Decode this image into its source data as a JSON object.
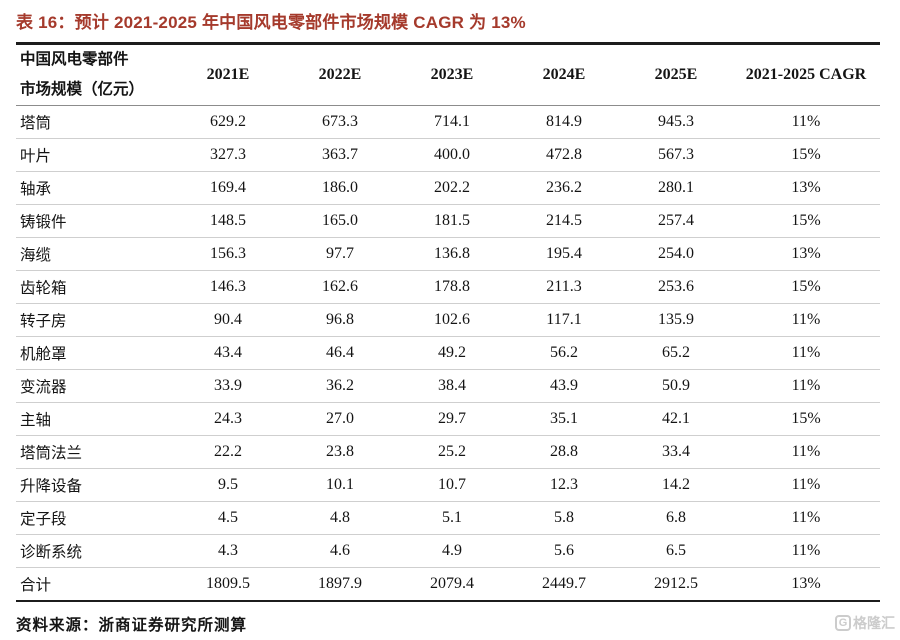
{
  "title": "表 16：预计 2021-2025 年中国风电零部件市场规模 CAGR 为 13%",
  "source": "资料来源：浙商证券研究所测算",
  "watermark": {
    "icon": "gelonghui-logo",
    "icon_letter": "G",
    "text": "格隆汇"
  },
  "colors": {
    "title_red": "#a53a2c",
    "rule_dark": "#1c1c1c",
    "rule_light": "#cfcfcf",
    "watermark_gray": "#cccccc"
  },
  "table": {
    "header_label_line1": "中国风电零部件",
    "header_label_line2": "市场规模（亿元）",
    "columns": [
      "2021E",
      "2022E",
      "2023E",
      "2024E",
      "2025E",
      "2021-2025 CAGR"
    ],
    "rows": [
      {
        "label": "塔筒",
        "values": [
          "629.2",
          "673.3",
          "714.1",
          "814.9",
          "945.3"
        ],
        "cagr": "11%"
      },
      {
        "label": "叶片",
        "values": [
          "327.3",
          "363.7",
          "400.0",
          "472.8",
          "567.3"
        ],
        "cagr": "15%"
      },
      {
        "label": "轴承",
        "values": [
          "169.4",
          "186.0",
          "202.2",
          "236.2",
          "280.1"
        ],
        "cagr": "13%"
      },
      {
        "label": "铸锻件",
        "values": [
          "148.5",
          "165.0",
          "181.5",
          "214.5",
          "257.4"
        ],
        "cagr": "15%"
      },
      {
        "label": "海缆",
        "values": [
          "156.3",
          "97.7",
          "136.8",
          "195.4",
          "254.0"
        ],
        "cagr": "13%"
      },
      {
        "label": "齿轮箱",
        "values": [
          "146.3",
          "162.6",
          "178.8",
          "211.3",
          "253.6"
        ],
        "cagr": "15%"
      },
      {
        "label": "转子房",
        "values": [
          "90.4",
          "96.8",
          "102.6",
          "117.1",
          "135.9"
        ],
        "cagr": "11%"
      },
      {
        "label": "机舱罩",
        "values": [
          "43.4",
          "46.4",
          "49.2",
          "56.2",
          "65.2"
        ],
        "cagr": "11%"
      },
      {
        "label": "变流器",
        "values": [
          "33.9",
          "36.2",
          "38.4",
          "43.9",
          "50.9"
        ],
        "cagr": "11%"
      },
      {
        "label": "主轴",
        "values": [
          "24.3",
          "27.0",
          "29.7",
          "35.1",
          "42.1"
        ],
        "cagr": "15%"
      },
      {
        "label": "塔筒法兰",
        "values": [
          "22.2",
          "23.8",
          "25.2",
          "28.8",
          "33.4"
        ],
        "cagr": "11%"
      },
      {
        "label": "升降设备",
        "values": [
          "9.5",
          "10.1",
          "10.7",
          "12.3",
          "14.2"
        ],
        "cagr": "11%"
      },
      {
        "label": "定子段",
        "values": [
          "4.5",
          "4.8",
          "5.1",
          "5.8",
          "6.8"
        ],
        "cagr": "11%"
      },
      {
        "label": "诊断系统",
        "values": [
          "4.3",
          "4.6",
          "4.9",
          "5.6",
          "6.5"
        ],
        "cagr": "11%"
      },
      {
        "label": "合计",
        "values": [
          "1809.5",
          "1897.9",
          "2079.4",
          "2449.7",
          "2912.5"
        ],
        "cagr": "13%"
      }
    ]
  },
  "chart_data": {
    "type": "table",
    "title": "预计 2021-2025 年中国风电零部件市场规模 CAGR 为 13%",
    "unit": "亿元",
    "columns": [
      "2021E",
      "2022E",
      "2023E",
      "2024E",
      "2025E",
      "2021-2025 CAGR"
    ],
    "categories": [
      "塔筒",
      "叶片",
      "轴承",
      "铸锻件",
      "海缆",
      "齿轮箱",
      "转子房",
      "机舱罩",
      "变流器",
      "主轴",
      "塔筒法兰",
      "升降设备",
      "定子段",
      "诊断系统",
      "合计"
    ],
    "series": [
      {
        "name": "2021E",
        "values": [
          629.2,
          327.3,
          169.4,
          148.5,
          156.3,
          146.3,
          90.4,
          43.4,
          33.9,
          24.3,
          22.2,
          9.5,
          4.5,
          4.3,
          1809.5
        ]
      },
      {
        "name": "2022E",
        "values": [
          673.3,
          363.7,
          186.0,
          165.0,
          97.7,
          162.6,
          96.8,
          46.4,
          36.2,
          27.0,
          23.8,
          10.1,
          4.8,
          4.6,
          1897.9
        ]
      },
      {
        "name": "2023E",
        "values": [
          714.1,
          400.0,
          202.2,
          181.5,
          136.8,
          178.8,
          102.6,
          49.2,
          38.4,
          29.7,
          25.2,
          10.7,
          5.1,
          4.9,
          2079.4
        ]
      },
      {
        "name": "2024E",
        "values": [
          814.9,
          472.8,
          236.2,
          214.5,
          195.4,
          211.3,
          117.1,
          56.2,
          43.9,
          35.1,
          28.8,
          12.3,
          5.8,
          5.6,
          2449.7
        ]
      },
      {
        "name": "2025E",
        "values": [
          945.3,
          567.3,
          280.1,
          257.4,
          254.0,
          253.6,
          135.9,
          65.2,
          50.9,
          42.1,
          33.4,
          14.2,
          6.8,
          6.5,
          2912.5
        ]
      },
      {
        "name": "2021-2025 CAGR",
        "values": [
          "11%",
          "15%",
          "13%",
          "15%",
          "13%",
          "15%",
          "11%",
          "11%",
          "11%",
          "15%",
          "11%",
          "11%",
          "11%",
          "11%",
          "13%"
        ]
      }
    ]
  }
}
